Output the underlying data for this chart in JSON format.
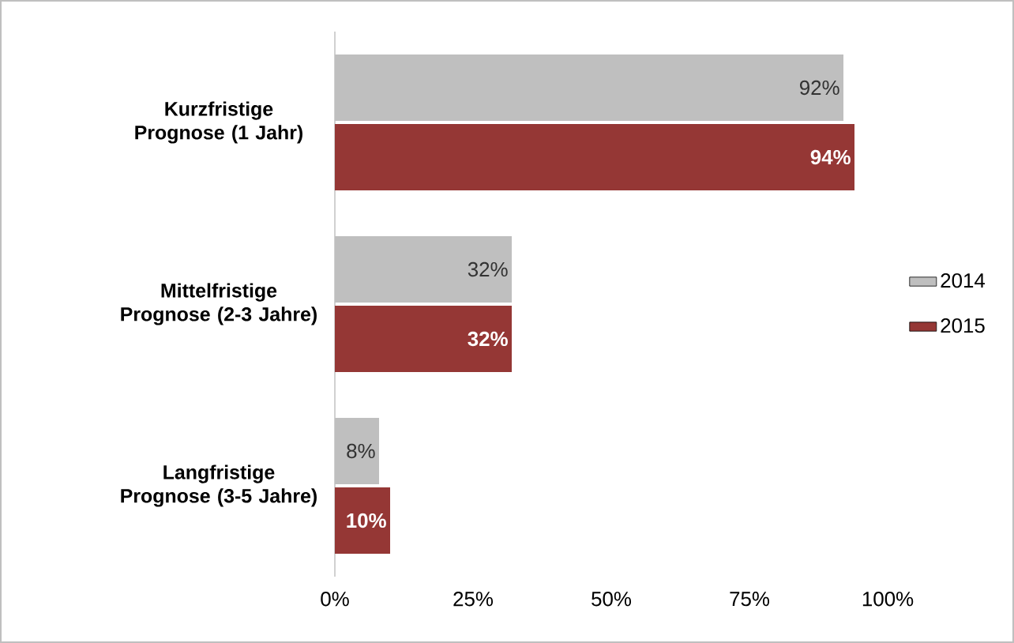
{
  "chart_data": {
    "type": "bar",
    "orientation": "horizontal",
    "categories": [
      "Kurzfristige Prognose (1 Jahr)",
      "Mittelfristige Prognose (2-3 Jahre)",
      "Langfristige Prognose (3-5 Jahre)"
    ],
    "series": [
      {
        "name": "2014",
        "color": "#bfbfbf",
        "values": [
          92,
          32,
          8
        ],
        "value_labels": [
          "92%",
          "32%",
          "8%"
        ]
      },
      {
        "name": "2015",
        "color": "#953735",
        "values": [
          94,
          32,
          10
        ],
        "value_labels": [
          "94%",
          "32%",
          "10%"
        ]
      }
    ],
    "xlim": [
      0,
      100
    ],
    "xticks": [
      {
        "value": 0,
        "label": "0%"
      },
      {
        "value": 25,
        "label": "25%"
      },
      {
        "value": 50,
        "label": "50%"
      },
      {
        "value": 75,
        "label": "75%"
      },
      {
        "value": 100,
        "label": "100%"
      }
    ],
    "legend": "right",
    "grid": false
  }
}
